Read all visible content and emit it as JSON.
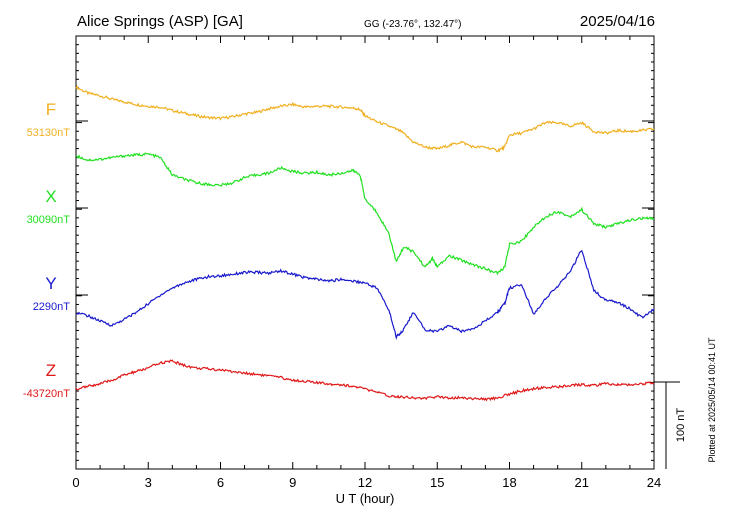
{
  "header": {
    "station": "Alice Springs (ASP)  [GA]",
    "coords": "GG (-23.76°, 132.47°)",
    "date": "2025/04/16"
  },
  "footer": {
    "plotted": "Plotted at 2025/05/14 00:41 UT",
    "scale_label": "100 nT"
  },
  "colors": {
    "F": "#f0b020",
    "X": "#22e022",
    "Y": "#1a1acc",
    "Z": "#e01818"
  },
  "chart_data": {
    "type": "line",
    "xlabel": "U T (hour)",
    "xlim": [
      0,
      24
    ],
    "x_ticks": [
      "0",
      "3",
      "6",
      "9",
      "12",
      "15",
      "18",
      "21",
      "24"
    ],
    "scale_nT": 100,
    "series": [
      {
        "name": "F",
        "key": "F",
        "baseline_label": "53130nT",
        "baseline_nT": 53130,
        "points": [
          [
            0,
            39
          ],
          [
            0.5,
            32
          ],
          [
            1,
            29
          ],
          [
            1.5,
            25
          ],
          [
            2,
            22
          ],
          [
            2.5,
            19
          ],
          [
            3,
            17
          ],
          [
            3.5,
            16
          ],
          [
            4,
            12
          ],
          [
            4.5,
            9
          ],
          [
            5,
            6
          ],
          [
            5.5,
            4
          ],
          [
            6,
            3
          ],
          [
            6.5,
            5
          ],
          [
            7,
            8
          ],
          [
            7.5,
            10
          ],
          [
            8,
            14
          ],
          [
            8.5,
            17
          ],
          [
            9,
            19
          ],
          [
            9.5,
            16
          ],
          [
            10,
            17
          ],
          [
            10.5,
            17
          ],
          [
            11,
            16
          ],
          [
            11.5,
            15
          ],
          [
            11.8,
            13
          ],
          [
            12,
            6
          ],
          [
            12.5,
            -1
          ],
          [
            13,
            -6
          ],
          [
            13.5,
            -12
          ],
          [
            14,
            -24
          ],
          [
            14.5,
            -30
          ],
          [
            15,
            -32
          ],
          [
            15.5,
            -28
          ],
          [
            16,
            -24
          ],
          [
            16.5,
            -30
          ],
          [
            17,
            -30
          ],
          [
            17.5,
            -34
          ],
          [
            17.8,
            -30
          ],
          [
            18,
            -16
          ],
          [
            18.5,
            -14
          ],
          [
            19,
            -9
          ],
          [
            19.5,
            -2
          ],
          [
            20,
            -2
          ],
          [
            20.5,
            -6
          ],
          [
            21,
            -2
          ],
          [
            21.5,
            -12
          ],
          [
            22,
            -14
          ],
          [
            22.5,
            -11
          ],
          [
            23,
            -12
          ],
          [
            23.5,
            -11
          ],
          [
            24,
            -9
          ]
        ]
      },
      {
        "name": "X",
        "key": "X",
        "baseline_label": "30090nT",
        "baseline_nT": 30090,
        "points": [
          [
            0,
            60
          ],
          [
            0.5,
            55
          ],
          [
            1,
            56
          ],
          [
            1.5,
            58
          ],
          [
            2,
            60
          ],
          [
            2.5,
            61
          ],
          [
            3,
            62
          ],
          [
            3.5,
            58
          ],
          [
            4,
            38
          ],
          [
            4.5,
            33
          ],
          [
            5,
            29
          ],
          [
            5.5,
            27
          ],
          [
            6,
            26
          ],
          [
            6.5,
            29
          ],
          [
            7,
            35
          ],
          [
            7.5,
            38
          ],
          [
            8,
            40
          ],
          [
            8.5,
            46
          ],
          [
            9,
            42
          ],
          [
            9.5,
            40
          ],
          [
            10,
            41
          ],
          [
            10.5,
            38
          ],
          [
            11,
            40
          ],
          [
            11.5,
            43
          ],
          [
            11.8,
            38
          ],
          [
            12,
            10
          ],
          [
            12.5,
            -5
          ],
          [
            13,
            -30
          ],
          [
            13.3,
            -62
          ],
          [
            13.6,
            -45
          ],
          [
            14,
            -50
          ],
          [
            14.5,
            -68
          ],
          [
            14.8,
            -58
          ],
          [
            15,
            -68
          ],
          [
            15.5,
            -55
          ],
          [
            16,
            -60
          ],
          [
            16.5,
            -65
          ],
          [
            17,
            -70
          ],
          [
            17.5,
            -75
          ],
          [
            17.8,
            -68
          ],
          [
            18,
            -42
          ],
          [
            18.5,
            -38
          ],
          [
            19,
            -22
          ],
          [
            19.5,
            -10
          ],
          [
            20,
            -4
          ],
          [
            20.5,
            -10
          ],
          [
            21,
            -2
          ],
          [
            21.5,
            -18
          ],
          [
            22,
            -22
          ],
          [
            22.5,
            -18
          ],
          [
            23,
            -14
          ],
          [
            23.5,
            -12
          ],
          [
            24,
            -12
          ]
        ]
      },
      {
        "name": "Y",
        "key": "Y",
        "baseline_label": "2290nT",
        "baseline_nT": 2290,
        "points": [
          [
            0,
            -20
          ],
          [
            0.5,
            -24
          ],
          [
            1,
            -30
          ],
          [
            1.5,
            -35
          ],
          [
            2,
            -28
          ],
          [
            2.5,
            -20
          ],
          [
            3,
            -10
          ],
          [
            3.5,
            0
          ],
          [
            4,
            8
          ],
          [
            4.5,
            14
          ],
          [
            5,
            18
          ],
          [
            5.5,
            21
          ],
          [
            6,
            22
          ],
          [
            6.5,
            24
          ],
          [
            7,
            26
          ],
          [
            7.5,
            26
          ],
          [
            8,
            25
          ],
          [
            8.5,
            28
          ],
          [
            9,
            24
          ],
          [
            9.5,
            20
          ],
          [
            10,
            18
          ],
          [
            10.5,
            16
          ],
          [
            11,
            18
          ],
          [
            11.5,
            16
          ],
          [
            12,
            14
          ],
          [
            12.5,
            8
          ],
          [
            13,
            -18
          ],
          [
            13.3,
            -48
          ],
          [
            13.6,
            -40
          ],
          [
            14,
            -20
          ],
          [
            14.5,
            -40
          ],
          [
            15,
            -42
          ],
          [
            15.5,
            -35
          ],
          [
            16,
            -42
          ],
          [
            16.5,
            -38
          ],
          [
            17,
            -30
          ],
          [
            17.5,
            -20
          ],
          [
            17.8,
            -10
          ],
          [
            18,
            8
          ],
          [
            18.5,
            12
          ],
          [
            19,
            -22
          ],
          [
            19.5,
            -4
          ],
          [
            20,
            10
          ],
          [
            20.5,
            26
          ],
          [
            21,
            52
          ],
          [
            21.5,
            5
          ],
          [
            22,
            -6
          ],
          [
            22.5,
            -8
          ],
          [
            23,
            -16
          ],
          [
            23.5,
            -26
          ],
          [
            24,
            -16
          ]
        ]
      },
      {
        "name": "Z",
        "key": "Z",
        "baseline_label": "-43720nT",
        "baseline_nT": -43720,
        "points": [
          [
            0,
            -8
          ],
          [
            0.5,
            -5
          ],
          [
            1,
            -2
          ],
          [
            1.5,
            2
          ],
          [
            2,
            8
          ],
          [
            2.5,
            12
          ],
          [
            3,
            16
          ],
          [
            3.5,
            22
          ],
          [
            4,
            24
          ],
          [
            4.5,
            19
          ],
          [
            5,
            16
          ],
          [
            5.5,
            15
          ],
          [
            6,
            14
          ],
          [
            6.5,
            12
          ],
          [
            7,
            10
          ],
          [
            7.5,
            9
          ],
          [
            8,
            7
          ],
          [
            8.5,
            5
          ],
          [
            9,
            2
          ],
          [
            9.5,
            1
          ],
          [
            10,
            -1
          ],
          [
            10.5,
            -2
          ],
          [
            11,
            -3
          ],
          [
            11.5,
            -5
          ],
          [
            12,
            -8
          ],
          [
            12.5,
            -12
          ],
          [
            13,
            -16
          ],
          [
            13.5,
            -17
          ],
          [
            14,
            -18
          ],
          [
            14.5,
            -19
          ],
          [
            15,
            -17
          ],
          [
            15.5,
            -18
          ],
          [
            16,
            -18
          ],
          [
            16.5,
            -19
          ],
          [
            17,
            -20
          ],
          [
            17.5,
            -18
          ],
          [
            18,
            -14
          ],
          [
            18.5,
            -10
          ],
          [
            19,
            -8
          ],
          [
            19.5,
            -6
          ],
          [
            20,
            -6
          ],
          [
            20.5,
            -4
          ],
          [
            21,
            -3
          ],
          [
            21.5,
            -4
          ],
          [
            22,
            -2
          ],
          [
            22.5,
            -3
          ],
          [
            23,
            -3
          ],
          [
            23.5,
            -2
          ],
          [
            24,
            -1
          ]
        ]
      }
    ]
  }
}
